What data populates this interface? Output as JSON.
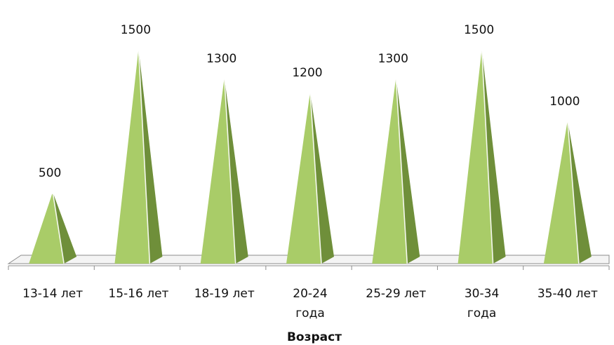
{
  "chart_data": {
    "type": "bar",
    "mark": "pyramid",
    "categories": [
      [
        "13-14 лет"
      ],
      [
        "15-16 лет"
      ],
      [
        "18-19 лет"
      ],
      [
        "20-24",
        "года"
      ],
      [
        "25-29 лет"
      ],
      [
        "30-34",
        "года"
      ],
      [
        "35-40 лет"
      ]
    ],
    "values": [
      500,
      1500,
      1300,
      1200,
      1300,
      1500,
      1000
    ],
    "value_labels": [
      "500",
      "1500",
      "1300",
      "1200",
      "1300",
      "1500",
      "1000"
    ],
    "xlabel": "Возраст",
    "ylim": [
      0,
      1500
    ],
    "grid": false,
    "legend": "none",
    "colors": {
      "face_light": "#a9cc68",
      "face_dark": "#6f8f3a",
      "highlight": "#ffffff",
      "floor_fill": "#f4f4f4",
      "floor_stroke": "#8c8c8c"
    }
  }
}
